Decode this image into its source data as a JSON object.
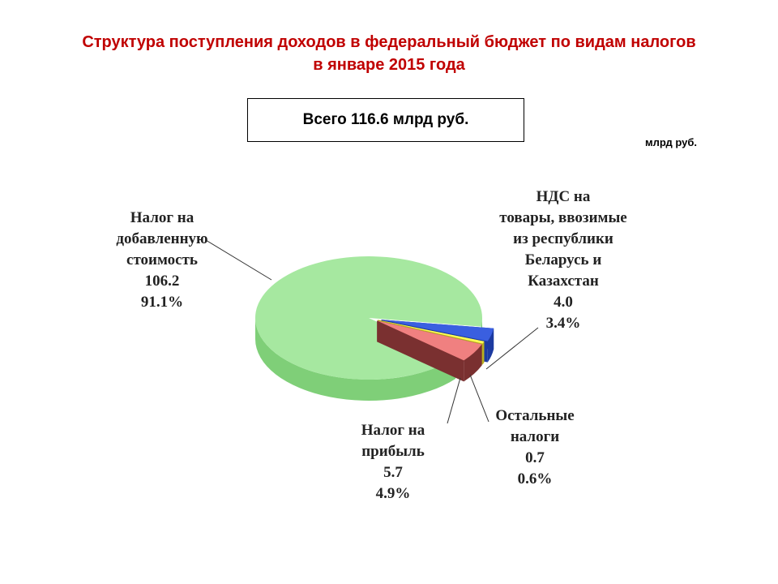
{
  "title_line1": "Структура поступления доходов в федеральный бюджет по видам налогов",
  "title_line2": "в январе 2015 года",
  "total_box": "Всего 116.6 млрд руб.",
  "unit": "млрд руб.",
  "chart_data": {
    "type": "pie",
    "style": "3d-exploded",
    "unit": "млрд руб.",
    "slices": [
      {
        "name_lines": [
          "Налог на",
          "добавленную",
          "стоимость"
        ],
        "value": 106.2,
        "value_text": "106.2",
        "percent_text": "91.1%",
        "color": "#a6e8a0",
        "side_color": "#7fcf78"
      },
      {
        "name_lines": [
          "Налог на",
          "прибыль"
        ],
        "value": 5.7,
        "value_text": "5.7",
        "percent_text": "4.9%",
        "color": "#f08080",
        "side_color": "#7a3030"
      },
      {
        "name_lines": [
          "Остальные",
          "налоги"
        ],
        "value": 0.7,
        "value_text": "0.7",
        "percent_text": "0.6%",
        "color": "#ffff55",
        "side_color": "#b8b020"
      },
      {
        "name_lines": [
          "НДС на",
          "товары, ввозимые",
          "из республики",
          "Беларусь и",
          "Казахстан"
        ],
        "value": 4.0,
        "value_text": "4.0",
        "percent_text": "3.4%",
        "color": "#3a5fe0",
        "side_color": "#1c3aa0"
      }
    ]
  }
}
